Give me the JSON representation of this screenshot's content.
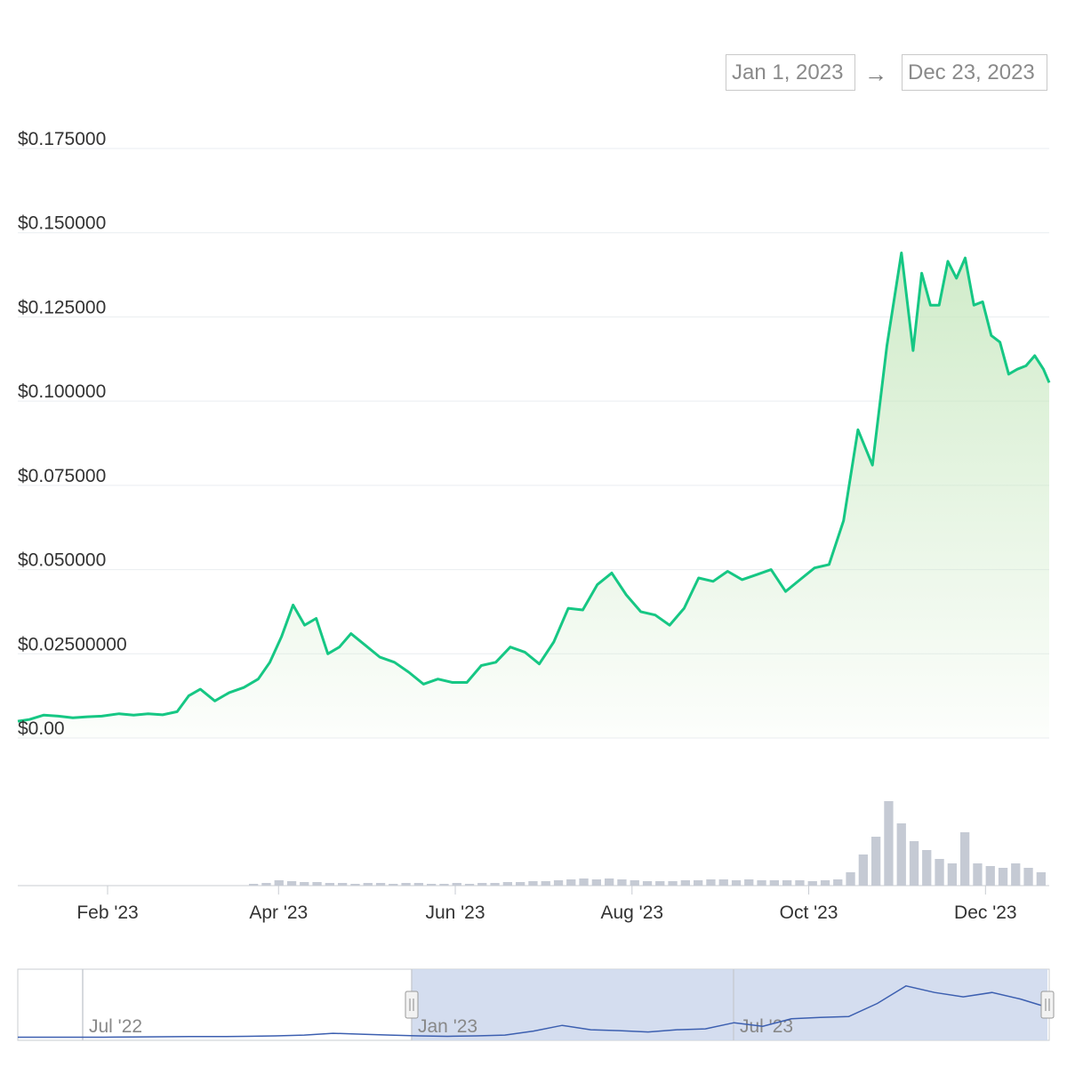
{
  "date_range": {
    "from": "Jan 1, 2023",
    "arrow": "→",
    "to": "Dec 23, 2023"
  },
  "colors": {
    "line": "#16c784",
    "area": "#c8e8c0",
    "grid": "#e9edf0",
    "volume": "#c5cad4",
    "navigator_line": "#3c5fb0",
    "navigator_fill": "#ccd7ec"
  },
  "chart_data": [
    {
      "type": "line",
      "title": "",
      "xlabel": "",
      "ylabel": "",
      "ylim": [
        0,
        0.175
      ],
      "y_tick_values": [
        0,
        0.025,
        0.05,
        0.075,
        0.1,
        0.125,
        0.15,
        0.175
      ],
      "y_tick_labels": [
        "$0.00",
        "$0.02500000",
        "$0.050000",
        "$0.075000",
        "$0.100000",
        "$0.125000",
        "$0.150000",
        "$0.175000"
      ],
      "x_range": [
        "2023-01-01",
        "2023-12-23"
      ],
      "x_tick_labels": [
        "Feb '23",
        "Apr '23",
        "Jun '23",
        "Aug '23",
        "Oct '23",
        "Dec '23"
      ],
      "x_tick_dates": [
        "2023-02-01",
        "2023-04-01",
        "2023-06-01",
        "2023-08-01",
        "2023-10-01",
        "2023-12-01"
      ],
      "grid": true,
      "area_fill": true,
      "series": [
        {
          "x": [
            "2023-01-01",
            "2023-01-05",
            "2023-01-10",
            "2023-01-15",
            "2023-01-20",
            "2023-01-25",
            "2023-01-30",
            "2023-02-05",
            "2023-02-10",
            "2023-02-15",
            "2023-02-20",
            "2023-02-25",
            "2023-03-01",
            "2023-03-05",
            "2023-03-10",
            "2023-03-15",
            "2023-03-20",
            "2023-03-25",
            "2023-03-29",
            "2023-04-02",
            "2023-04-06",
            "2023-04-10",
            "2023-04-14",
            "2023-04-18",
            "2023-04-22",
            "2023-04-26",
            "2023-05-01",
            "2023-05-06",
            "2023-05-11",
            "2023-05-16",
            "2023-05-21",
            "2023-05-26",
            "2023-05-31",
            "2023-06-05",
            "2023-06-10",
            "2023-06-15",
            "2023-06-20",
            "2023-06-25",
            "2023-06-30",
            "2023-07-05",
            "2023-07-10",
            "2023-07-15",
            "2023-07-20",
            "2023-07-25",
            "2023-07-30",
            "2023-08-04",
            "2023-08-09",
            "2023-08-14",
            "2023-08-19",
            "2023-08-24",
            "2023-08-29",
            "2023-09-03",
            "2023-09-08",
            "2023-09-13",
            "2023-09-18",
            "2023-09-23",
            "2023-09-28",
            "2023-10-03",
            "2023-10-08",
            "2023-10-13",
            "2023-10-18",
            "2023-10-23",
            "2023-10-28",
            "2023-11-02",
            "2023-11-06",
            "2023-11-09",
            "2023-11-12",
            "2023-11-15",
            "2023-11-18",
            "2023-11-21",
            "2023-11-24",
            "2023-11-27",
            "2023-11-30",
            "2023-12-03",
            "2023-12-06",
            "2023-12-09",
            "2023-12-12",
            "2023-12-15",
            "2023-12-18",
            "2023-12-21",
            "2023-12-23"
          ],
          "y": [
            0.005,
            0.0055,
            0.0068,
            0.0065,
            0.006,
            0.0063,
            0.0065,
            0.0072,
            0.0068,
            0.0072,
            0.0069,
            0.0078,
            0.0125,
            0.0145,
            0.011,
            0.0135,
            0.015,
            0.0175,
            0.0225,
            0.03,
            0.0395,
            0.0335,
            0.0355,
            0.025,
            0.027,
            0.031,
            0.0275,
            0.024,
            0.0225,
            0.0195,
            0.016,
            0.0175,
            0.0165,
            0.0165,
            0.0215,
            0.0225,
            0.027,
            0.0255,
            0.022,
            0.0285,
            0.0385,
            0.038,
            0.0455,
            0.049,
            0.0425,
            0.0375,
            0.0365,
            0.0335,
            0.0385,
            0.0475,
            0.0465,
            0.0495,
            0.047,
            0.0485,
            0.05,
            0.0435,
            0.047,
            0.0505,
            0.0515,
            0.0645,
            0.0915,
            0.081,
            0.1165,
            0.144,
            0.115,
            0.138,
            0.1285,
            0.1285,
            0.1415,
            0.1365,
            0.1425,
            0.1285,
            0.1295,
            0.1195,
            0.1175,
            0.108,
            0.1095,
            0.1105,
            0.1135,
            0.1095,
            0.1055
          ]
        }
      ]
    },
    {
      "type": "bar",
      "title": "",
      "bars": [
        0.02,
        0.03,
        0.06,
        0.05,
        0.04,
        0.04,
        0.03,
        0.03,
        0.02,
        0.03,
        0.03,
        0.02,
        0.03,
        0.03,
        0.02,
        0.02,
        0.03,
        0.02,
        0.03,
        0.03,
        0.04,
        0.04,
        0.05,
        0.05,
        0.06,
        0.07,
        0.08,
        0.07,
        0.08,
        0.07,
        0.06,
        0.05,
        0.05,
        0.05,
        0.06,
        0.06,
        0.07,
        0.07,
        0.06,
        0.07,
        0.06,
        0.06,
        0.06,
        0.06,
        0.05,
        0.06,
        0.07,
        0.15,
        0.35,
        0.55,
        0.95,
        0.7,
        0.5,
        0.4,
        0.3,
        0.25,
        0.6,
        0.25,
        0.22,
        0.2,
        0.25,
        0.2,
        0.15
      ]
    },
    {
      "type": "line",
      "title": "",
      "x_tick_labels": [
        "Jul '22",
        "Jan '23",
        "Jul '23"
      ],
      "selection": [
        "Jan 1, 2023",
        "Dec 23, 2023"
      ],
      "y": [
        0.003,
        0.003,
        0.003,
        0.003,
        0.0035,
        0.004,
        0.0045,
        0.0045,
        0.005,
        0.006,
        0.008,
        0.012,
        0.01,
        0.008,
        0.006,
        0.005,
        0.006,
        0.008,
        0.017,
        0.03,
        0.02,
        0.018,
        0.015,
        0.02,
        0.022,
        0.036,
        0.028,
        0.045,
        0.048,
        0.05,
        0.08,
        0.12,
        0.105,
        0.095,
        0.105,
        0.09,
        0.07
      ]
    }
  ]
}
